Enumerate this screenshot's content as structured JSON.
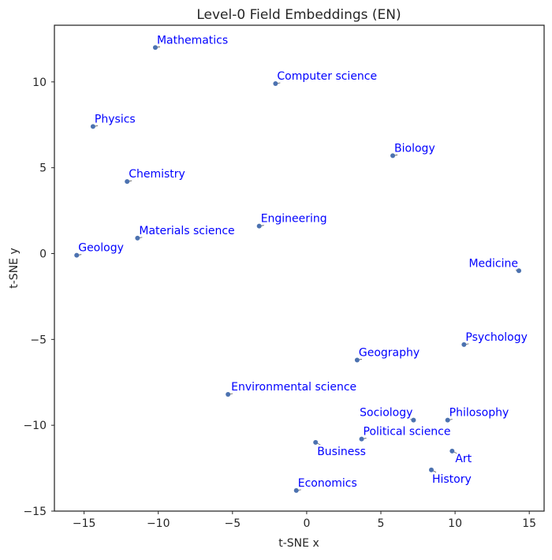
{
  "chart_data": {
    "type": "scatter",
    "title": "Level-0 Field Embeddings (EN)",
    "xlabel": "t-SNE x",
    "ylabel": "t-SNE y",
    "xlim": [
      -17,
      16
    ],
    "ylim": [
      -15,
      13.3
    ],
    "xticks": [
      -15,
      -10,
      -5,
      0,
      5,
      10,
      15
    ],
    "yticks": [
      -15,
      -10,
      -5,
      0,
      5,
      10
    ],
    "grid": false,
    "legend": "none",
    "marker_color": "#4c72b0",
    "label_color": "#0000ff",
    "points": [
      {
        "label": "Mathematics",
        "x": -10.2,
        "y": 12.0
      },
      {
        "label": "Computer science",
        "x": -2.1,
        "y": 9.9
      },
      {
        "label": "Physics",
        "x": -14.4,
        "y": 7.4
      },
      {
        "label": "Biology",
        "x": 5.8,
        "y": 5.7
      },
      {
        "label": "Chemistry",
        "x": -12.1,
        "y": 4.2
      },
      {
        "label": "Engineering",
        "x": -3.2,
        "y": 1.6
      },
      {
        "label": "Materials science",
        "x": -11.4,
        "y": 0.9
      },
      {
        "label": "Geology",
        "x": -15.5,
        "y": -0.1
      },
      {
        "label": "Medicine",
        "x": 14.3,
        "y": -1.0
      },
      {
        "label": "Psychology",
        "x": 10.6,
        "y": -5.3
      },
      {
        "label": "Geography",
        "x": 3.4,
        "y": -6.2
      },
      {
        "label": "Environmental science",
        "x": -5.3,
        "y": -8.2
      },
      {
        "label": "Sociology",
        "x": 7.2,
        "y": -9.7
      },
      {
        "label": "Philosophy",
        "x": 9.5,
        "y": -9.7
      },
      {
        "label": "Political science",
        "x": 3.7,
        "y": -10.8
      },
      {
        "label": "Business",
        "x": 0.6,
        "y": -11.0
      },
      {
        "label": "Art",
        "x": 9.8,
        "y": -11.5
      },
      {
        "label": "History",
        "x": 8.4,
        "y": -12.6
      },
      {
        "label": "Economics",
        "x": -0.7,
        "y": -13.8
      }
    ]
  }
}
